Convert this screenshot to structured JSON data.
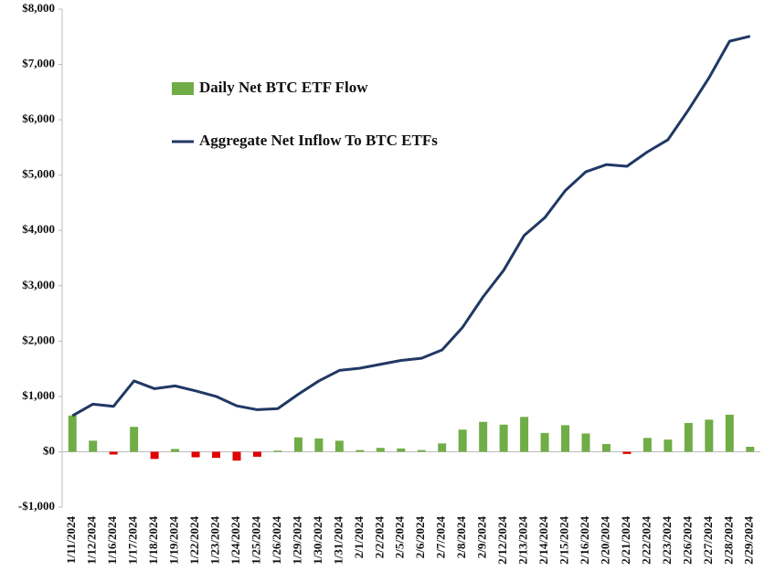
{
  "chart_data": {
    "type": "bar",
    "categories": [
      "1/11/2024",
      "1/12/2024",
      "1/16/2024",
      "1/17/2024",
      "1/18/2024",
      "1/19/2024",
      "1/22/2024",
      "1/23/2024",
      "1/24/2024",
      "1/25/2024",
      "1/26/2024",
      "1/29/2024",
      "1/30/2024",
      "1/31/2024",
      "2/1/2024",
      "2/2/2024",
      "2/5/2024",
      "2/6/2024",
      "2/7/2024",
      "2/8/2024",
      "2/9/2024",
      "2/12/2024",
      "2/13/2024",
      "2/14/2024",
      "2/15/2024",
      "2/16/2024",
      "2/20/2024",
      "2/21/2024",
      "2/22/2024",
      "2/23/2024",
      "2/26/2024",
      "2/27/2024",
      "2/28/2024",
      "2/29/2024"
    ],
    "series": [
      {
        "name": "Daily Net BTC ETF Flow",
        "type": "bar",
        "color": "#70ad47",
        "negative_color": "#e00000",
        "values": [
          655,
          200,
          -50,
          450,
          -130,
          50,
          -100,
          -110,
          -160,
          -90,
          20,
          260,
          240,
          200,
          30,
          70,
          60,
          30,
          150,
          400,
          540,
          490,
          630,
          340,
          480,
          330,
          140,
          -40,
          250,
          220,
          520,
          580,
          670,
          90
        ]
      },
      {
        "name": "Aggregate Net Inflow To BTC ETFs",
        "type": "line",
        "color": "#203864",
        "values": [
          650,
          860,
          820,
          1280,
          1140,
          1190,
          1100,
          1000,
          830,
          760,
          780,
          1040,
          1280,
          1470,
          1510,
          1580,
          1650,
          1690,
          1840,
          2250,
          2800,
          3280,
          3910,
          4230,
          4720,
          5060,
          5190,
          5160,
          5420,
          5640,
          6180,
          6760,
          7420,
          7510
        ]
      }
    ],
    "ylim": [
      -1000,
      8000
    ],
    "yticks": [
      {
        "value": -1000,
        "label": "-$1,000"
      },
      {
        "value": 0,
        "label": "$0"
      },
      {
        "value": 1000,
        "label": "$1,000"
      },
      {
        "value": 2000,
        "label": "$2,000"
      },
      {
        "value": 3000,
        "label": "$3,000"
      },
      {
        "value": 4000,
        "label": "$4,000"
      },
      {
        "value": 5000,
        "label": "$5,000"
      },
      {
        "value": 6000,
        "label": "$6,000"
      },
      {
        "value": 7000,
        "label": "$7,000"
      },
      {
        "value": 8000,
        "label": "$8,000"
      }
    ],
    "grid": false
  }
}
